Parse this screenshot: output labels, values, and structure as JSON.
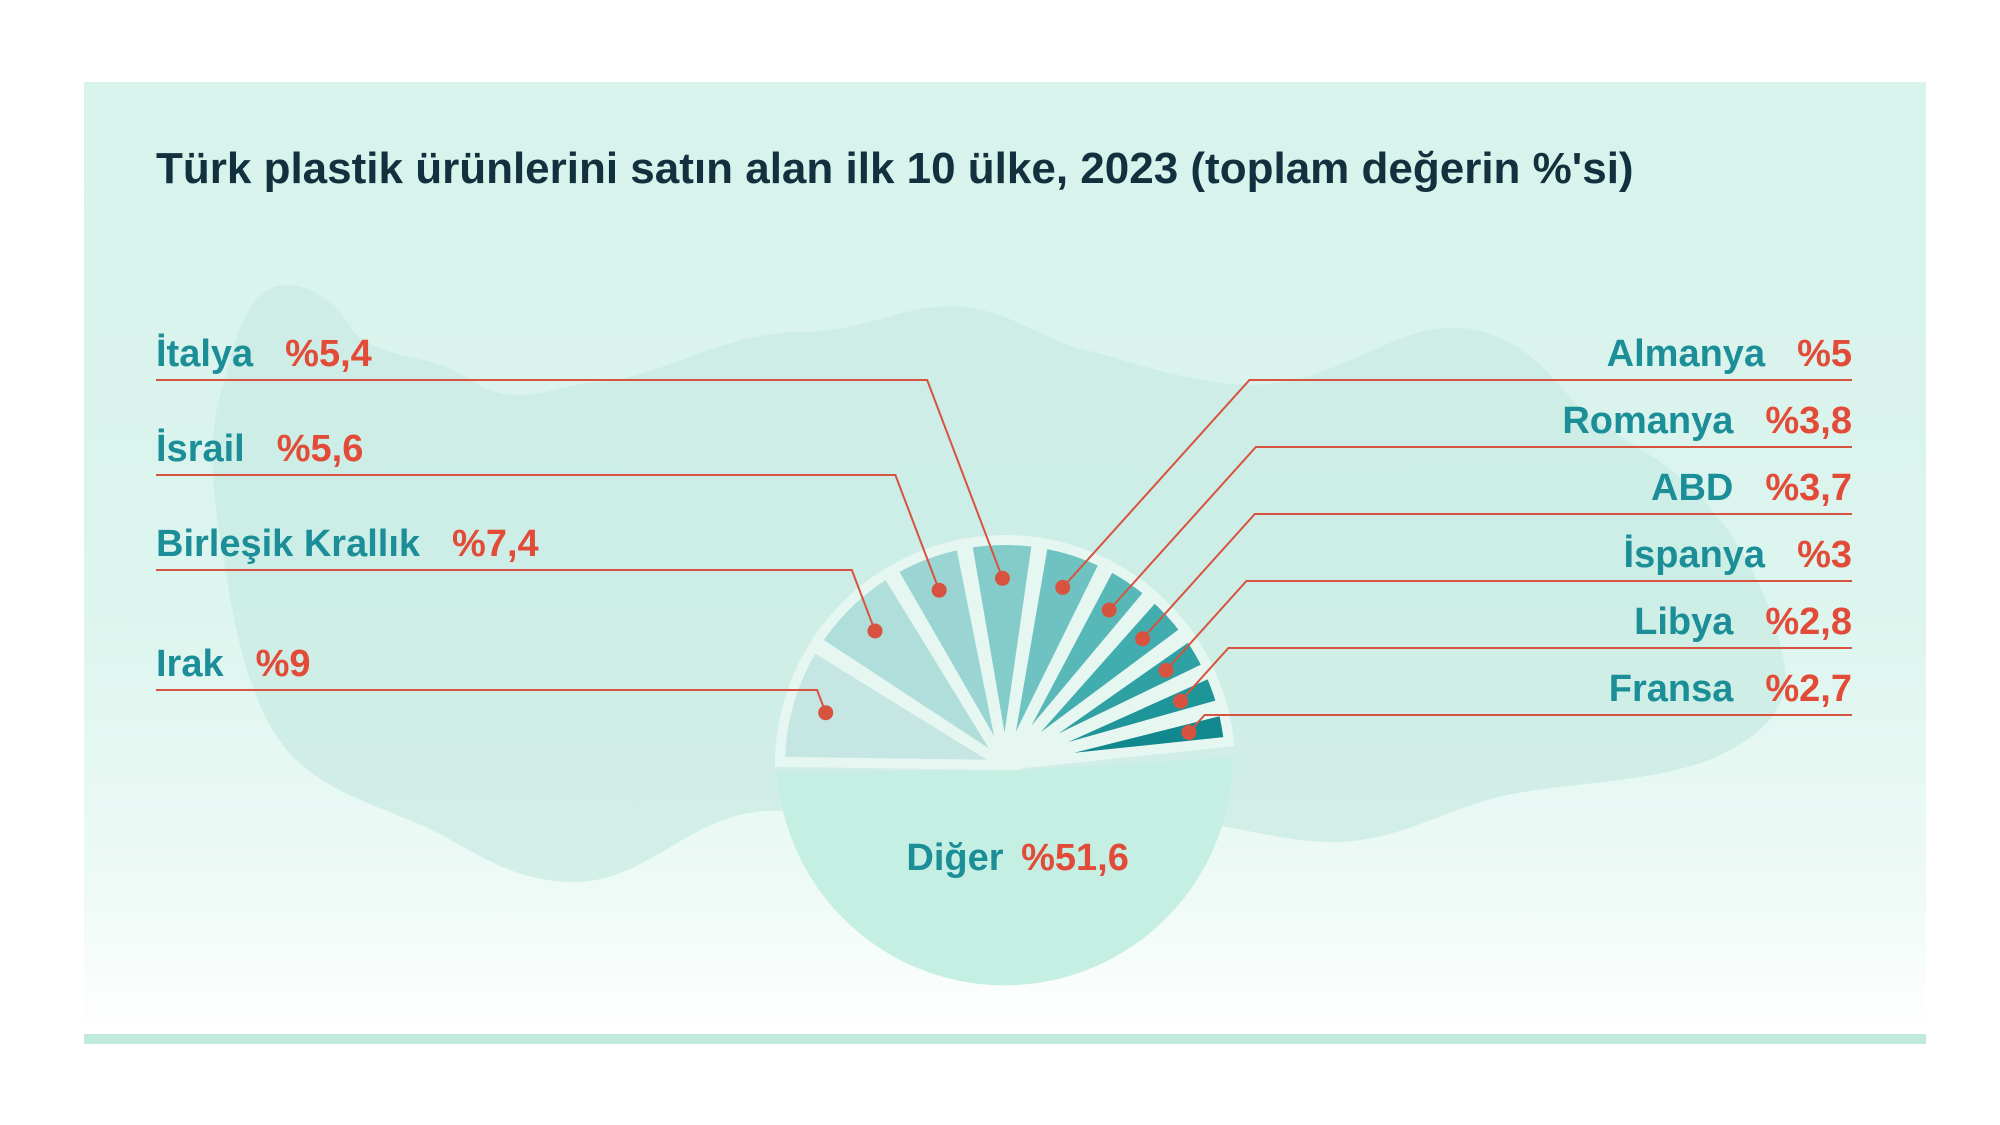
{
  "title": "Türk plastik ürünlerini satın alan ilk 10 ülke, 2023 (toplam değerin %'si)",
  "colors": {
    "country_text": "#1b8e98",
    "value_text": "#e24b37",
    "leader_line": "#d8533f",
    "title_text": "#12303d"
  },
  "chart_data": {
    "type": "pie",
    "title": "Türk plastik ürünlerini satın alan ilk 10 ülke, 2023 (toplam değerin %'si)",
    "slices": [
      {
        "label": "Irak",
        "value": 9,
        "value_label": "%9",
        "color": "#c6e6e3"
      },
      {
        "label": "Birleşik Krallık",
        "value": 7.4,
        "value_label": "%7,4",
        "color": "#b0dedb"
      },
      {
        "label": "İsrail",
        "value": 5.6,
        "value_label": "%5,6",
        "color": "#9ad5d3"
      },
      {
        "label": "İtalya",
        "value": 5.4,
        "value_label": "%5,4",
        "color": "#84ccca"
      },
      {
        "label": "Almanya",
        "value": 5,
        "value_label": "%5",
        "color": "#6ec3c2"
      },
      {
        "label": "Romanya",
        "value": 3.8,
        "value_label": "%3,8",
        "color": "#58b8b8"
      },
      {
        "label": "ABD",
        "value": 3.7,
        "value_label": "%3,7",
        "color": "#42adae"
      },
      {
        "label": "İspanya",
        "value": 3,
        "value_label": "%3",
        "color": "#2fa1a3"
      },
      {
        "label": "Libya",
        "value": 2.8,
        "value_label": "%2,8",
        "color": "#1e9599"
      },
      {
        "label": "Fransa",
        "value": 2.7,
        "value_label": "%2,7",
        "color": "#11888e"
      },
      {
        "label": "Diğer",
        "value": 51.6,
        "value_label": "%51,6",
        "color": "#c4efe2"
      }
    ]
  }
}
